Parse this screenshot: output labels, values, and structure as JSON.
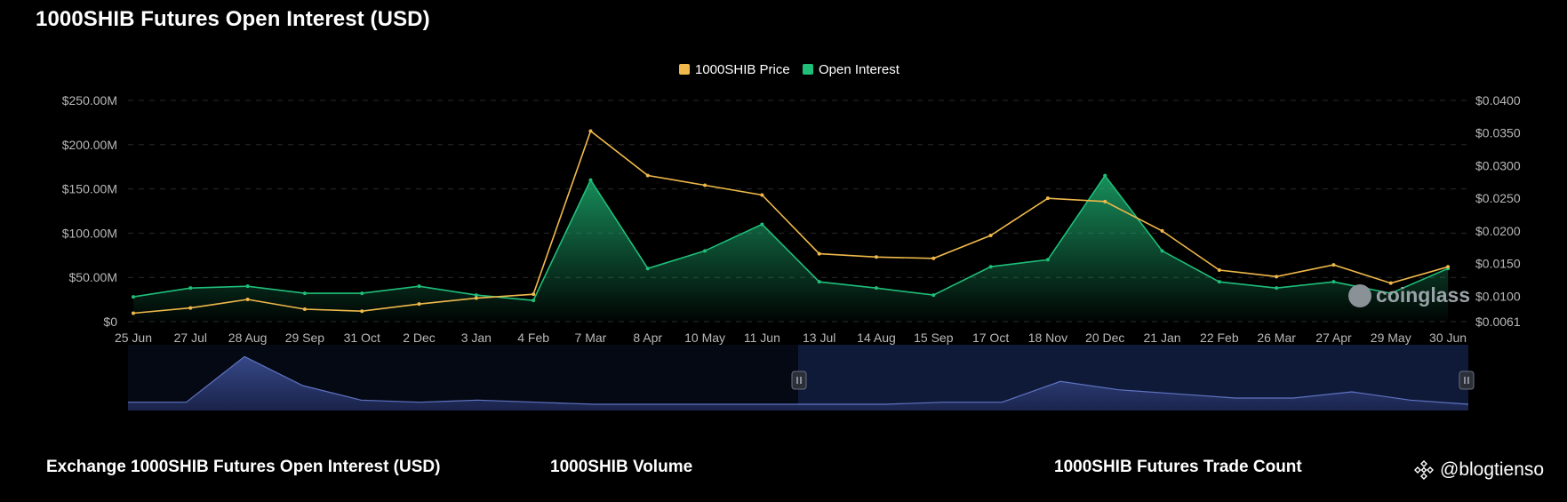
{
  "header": {
    "title": "1000SHIB Futures Open Interest (USD)"
  },
  "bottom_links": [
    "Exchange 1000SHIB Futures Open Interest (USD)",
    "1000SHIB Volume",
    "1000SHIB Futures Trade Count"
  ],
  "credit": {
    "text": "blogtienso"
  },
  "watermark": {
    "text": "coinglass"
  },
  "colors": {
    "background": "#000000",
    "price": "#f0b94a",
    "open_interest": "#1fbf7a",
    "volume": "#4a5fa8",
    "grid": "#2a2a2a",
    "tick_text": "#b8b8b8"
  },
  "chart_data": {
    "type": "area",
    "title": "1000SHIB Futures Open Interest (USD)",
    "grid": true,
    "legend_position": "top-center",
    "x_tick_labels": [
      "25 Jun",
      "27 Jul",
      "28 Aug",
      "29 Sep",
      "31 Oct",
      "2 Dec",
      "3 Jan",
      "4 Feb",
      "7 Mar",
      "8 Apr",
      "10 May",
      "11 Jun",
      "13 Jul",
      "14 Aug",
      "15 Sep",
      "17 Oct",
      "18 Nov",
      "20 Dec",
      "21 Jan",
      "22 Feb",
      "26 Mar",
      "27 Apr",
      "29 May",
      "30 Jun"
    ],
    "y_left": {
      "label": "",
      "ticks": [
        "$0",
        "$50.00M",
        "$100.00M",
        "$150.00M",
        "$200.00M",
        "$250.00M"
      ],
      "range": [
        0,
        250
      ]
    },
    "y_right": {
      "label": "",
      "ticks": [
        "$0.0061",
        "$0.0100",
        "$0.0150",
        "$0.0200",
        "$0.0250",
        "$0.0300",
        "$0.0350",
        "$0.0400"
      ],
      "range": [
        0.0061,
        0.04
      ]
    },
    "series": [
      {
        "name": "1000SHIB Price",
        "axis": "right",
        "type": "line",
        "x": [
          0,
          1,
          2,
          3,
          4,
          5,
          6,
          7,
          8,
          9,
          10,
          11,
          12,
          13,
          14,
          15,
          16,
          17,
          18,
          19,
          20,
          21,
          22,
          23
        ],
        "values": [
          0.0074,
          0.0082,
          0.0095,
          0.008,
          0.0077,
          0.0088,
          0.0097,
          0.0103,
          0.0353,
          0.0285,
          0.027,
          0.0255,
          0.0165,
          0.016,
          0.0158,
          0.0193,
          0.025,
          0.0245,
          0.02,
          0.014,
          0.013,
          0.0148,
          0.012,
          0.0145
        ]
      },
      {
        "name": "Open Interest",
        "axis": "left",
        "type": "area",
        "x": [
          0,
          1,
          2,
          3,
          4,
          5,
          6,
          7,
          8,
          9,
          10,
          11,
          12,
          13,
          14,
          15,
          16,
          17,
          18,
          19,
          20,
          21,
          22,
          23
        ],
        "values": [
          28,
          38,
          40,
          32,
          32,
          40,
          30,
          24,
          160,
          60,
          80,
          110,
          45,
          38,
          30,
          62,
          70,
          165,
          80,
          45,
          38,
          45,
          32,
          60
        ]
      }
    ],
    "navigator": {
      "name": "Volume",
      "x": [
        0,
        1,
        2,
        3,
        4,
        5,
        6,
        7,
        8,
        9,
        10,
        11,
        12,
        13,
        14,
        15,
        16,
        17,
        18,
        19,
        20,
        21,
        22,
        23
      ],
      "values": [
        4,
        4,
        26,
        12,
        5,
        4,
        5,
        4,
        3,
        3,
        3,
        3,
        3,
        3,
        4,
        4,
        14,
        10,
        8,
        6,
        6,
        9,
        5,
        3
      ]
    }
  }
}
